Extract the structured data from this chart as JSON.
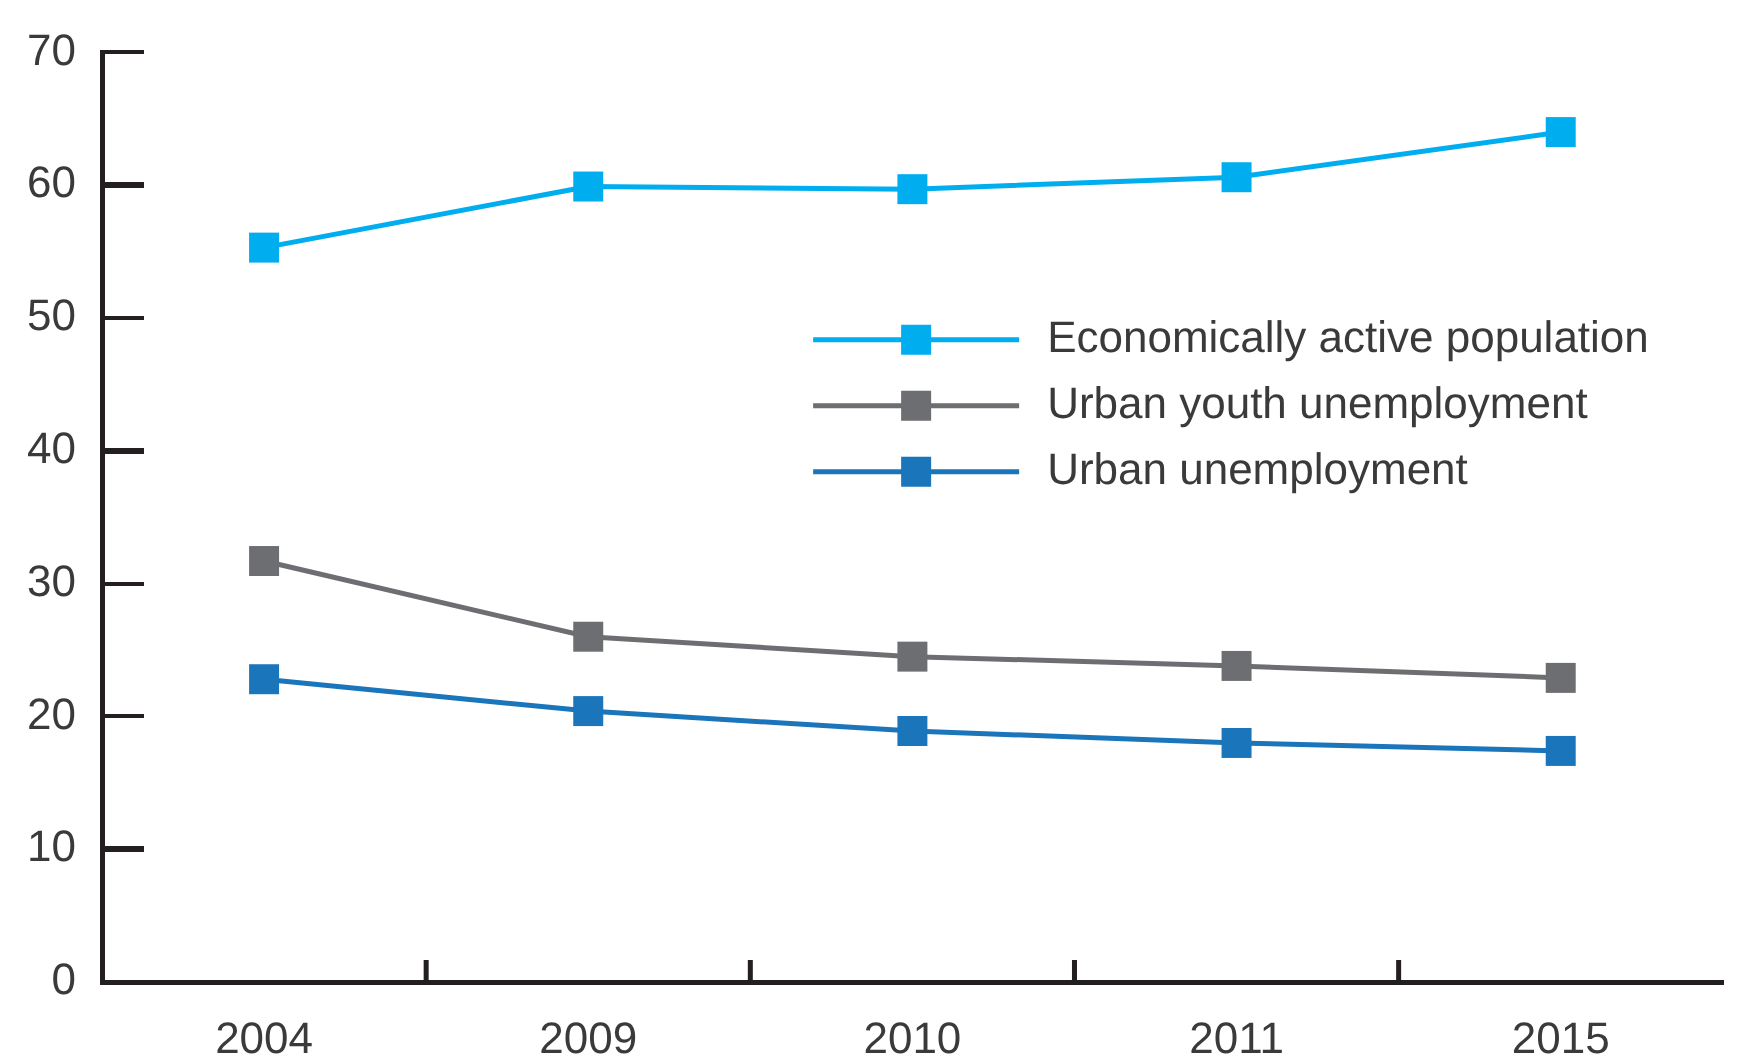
{
  "chart_data": {
    "type": "line",
    "categories": [
      "2004",
      "2009",
      "2010",
      "2011",
      "2015"
    ],
    "series": [
      {
        "name": "Economically active population",
        "color": "#00aeef",
        "values": [
          55.3,
          59.9,
          59.7,
          60.6,
          64.0
        ]
      },
      {
        "name": "Urban youth unemployment",
        "color": "#6d6e71",
        "values": [
          31.7,
          26.0,
          24.5,
          23.8,
          22.9
        ]
      },
      {
        "name": "Urban unemployment",
        "color": "#1b75bb",
        "values": [
          22.8,
          20.4,
          18.9,
          18.0,
          17.4
        ]
      }
    ],
    "ylim": [
      0,
      70
    ],
    "yticks": [
      0,
      10,
      20,
      30,
      40,
      50,
      60,
      70
    ],
    "legend": "right",
    "marker": "square",
    "line_style": "solid",
    "grid": false
  }
}
